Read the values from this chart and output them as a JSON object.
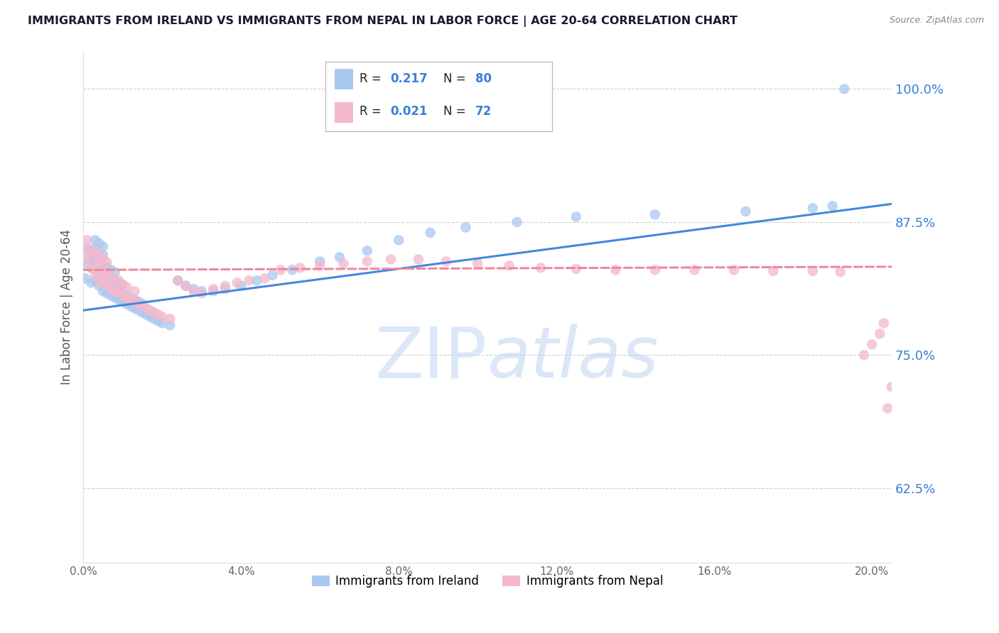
{
  "title": "IMMIGRANTS FROM IRELAND VS IMMIGRANTS FROM NEPAL IN LABOR FORCE | AGE 20-64 CORRELATION CHART",
  "source": "Source: ZipAtlas.com",
  "ylabel": "In Labor Force | Age 20-64",
  "ytick_labels": [
    "62.5%",
    "75.0%",
    "87.5%",
    "100.0%"
  ],
  "ytick_values": [
    0.625,
    0.75,
    0.875,
    1.0
  ],
  "xtick_values": [
    0.0,
    0.04,
    0.08,
    0.12,
    0.16,
    0.2
  ],
  "xtick_labels": [
    "0.0%",
    "4.0%",
    "8.0%",
    "12.0%",
    "16.0%",
    "20.0%"
  ],
  "xlim": [
    0.0,
    0.205
  ],
  "ylim": [
    0.555,
    1.035
  ],
  "ireland_color": "#a8c8f0",
  "nepal_color": "#f4b8cc",
  "ireland_line_color": "#4488dd",
  "nepal_line_color": "#ee8899",
  "legend_ireland_label": "Immigrants from Ireland",
  "legend_nepal_label": "Immigrants from Nepal",
  "ireland_R": 0.217,
  "ireland_N": 80,
  "nepal_R": 0.021,
  "nepal_N": 72,
  "ireland_line_x0": 0.0,
  "ireland_line_x1": 0.205,
  "ireland_line_y0": 0.792,
  "ireland_line_y1": 0.892,
  "nepal_line_x0": 0.0,
  "nepal_line_x1": 0.205,
  "nepal_line_y0": 0.83,
  "nepal_line_y1": 0.833,
  "ireland_x": [
    0.0005,
    0.001,
    0.001,
    0.0015,
    0.002,
    0.002,
    0.002,
    0.003,
    0.003,
    0.003,
    0.003,
    0.003,
    0.004,
    0.004,
    0.004,
    0.004,
    0.004,
    0.005,
    0.005,
    0.005,
    0.005,
    0.005,
    0.005,
    0.006,
    0.006,
    0.006,
    0.006,
    0.007,
    0.007,
    0.007,
    0.007,
    0.008,
    0.008,
    0.008,
    0.008,
    0.009,
    0.009,
    0.009,
    0.01,
    0.01,
    0.01,
    0.011,
    0.011,
    0.012,
    0.012,
    0.013,
    0.013,
    0.014,
    0.014,
    0.015,
    0.015,
    0.016,
    0.017,
    0.018,
    0.019,
    0.02,
    0.022,
    0.024,
    0.026,
    0.028,
    0.03,
    0.033,
    0.036,
    0.04,
    0.044,
    0.048,
    0.053,
    0.06,
    0.065,
    0.072,
    0.08,
    0.088,
    0.097,
    0.11,
    0.125,
    0.145,
    0.168,
    0.185,
    0.19,
    0.193
  ],
  "ireland_y": [
    0.822,
    0.835,
    0.85,
    0.84,
    0.818,
    0.832,
    0.848,
    0.82,
    0.83,
    0.84,
    0.85,
    0.858,
    0.815,
    0.825,
    0.835,
    0.845,
    0.855,
    0.81,
    0.82,
    0.828,
    0.836,
    0.844,
    0.852,
    0.808,
    0.816,
    0.824,
    0.832,
    0.806,
    0.814,
    0.822,
    0.83,
    0.804,
    0.812,
    0.82,
    0.828,
    0.802,
    0.81,
    0.818,
    0.8,
    0.808,
    0.816,
    0.798,
    0.806,
    0.796,
    0.804,
    0.794,
    0.802,
    0.792,
    0.8,
    0.79,
    0.798,
    0.788,
    0.786,
    0.784,
    0.782,
    0.78,
    0.778,
    0.82,
    0.815,
    0.812,
    0.81,
    0.81,
    0.812,
    0.815,
    0.82,
    0.825,
    0.83,
    0.838,
    0.842,
    0.848,
    0.858,
    0.865,
    0.87,
    0.875,
    0.88,
    0.882,
    0.885,
    0.888,
    0.89,
    1.0
  ],
  "nepal_x": [
    0.0005,
    0.001,
    0.001,
    0.002,
    0.002,
    0.003,
    0.003,
    0.003,
    0.004,
    0.004,
    0.004,
    0.005,
    0.005,
    0.005,
    0.006,
    0.006,
    0.006,
    0.007,
    0.007,
    0.008,
    0.008,
    0.009,
    0.009,
    0.01,
    0.01,
    0.011,
    0.011,
    0.012,
    0.013,
    0.013,
    0.014,
    0.015,
    0.016,
    0.017,
    0.018,
    0.019,
    0.02,
    0.022,
    0.024,
    0.026,
    0.028,
    0.03,
    0.033,
    0.036,
    0.039,
    0.042,
    0.046,
    0.05,
    0.055,
    0.06,
    0.066,
    0.072,
    0.078,
    0.085,
    0.092,
    0.1,
    0.108,
    0.116,
    0.125,
    0.135,
    0.145,
    0.155,
    0.165,
    0.175,
    0.185,
    0.192,
    0.198,
    0.2,
    0.202,
    0.203,
    0.204,
    0.205
  ],
  "nepal_y": [
    0.84,
    0.848,
    0.858,
    0.832,
    0.845,
    0.825,
    0.835,
    0.848,
    0.82,
    0.832,
    0.844,
    0.818,
    0.828,
    0.84,
    0.815,
    0.825,
    0.837,
    0.812,
    0.824,
    0.81,
    0.82,
    0.808,
    0.82,
    0.806,
    0.816,
    0.804,
    0.814,
    0.802,
    0.8,
    0.81,
    0.798,
    0.796,
    0.794,
    0.792,
    0.79,
    0.788,
    0.786,
    0.784,
    0.82,
    0.815,
    0.81,
    0.808,
    0.812,
    0.815,
    0.818,
    0.82,
    0.822,
    0.83,
    0.832,
    0.834,
    0.836,
    0.838,
    0.84,
    0.84,
    0.838,
    0.836,
    0.834,
    0.832,
    0.831,
    0.83,
    0.83,
    0.83,
    0.83,
    0.829,
    0.829,
    0.828,
    0.75,
    0.76,
    0.77,
    0.78,
    0.7,
    0.72
  ],
  "watermark_zip": "ZIP",
  "watermark_atlas": "atlas",
  "background_color": "#ffffff",
  "grid_color": "#cccccc",
  "axis_label_color": "#3a7fd5",
  "title_color": "#1a1a2e"
}
